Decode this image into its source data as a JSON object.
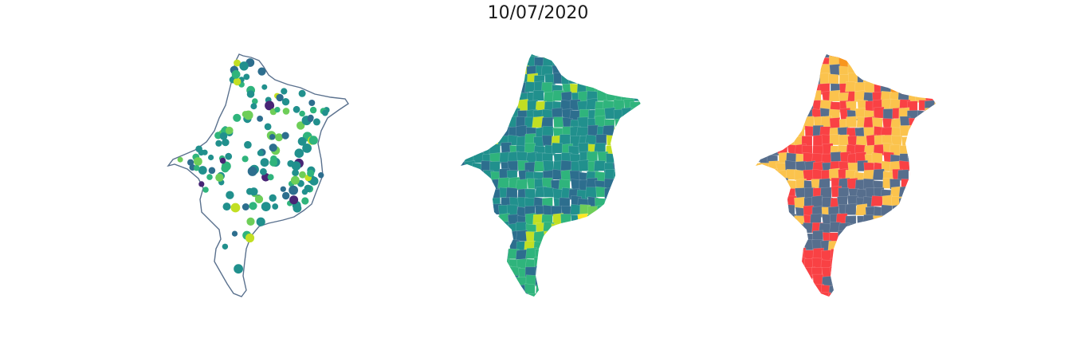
{
  "figure": {
    "title": "10/07/2020"
  },
  "colors": {
    "outline": "#5a718e",
    "viridis": [
      "#482575",
      "#2d6e8e",
      "#21908d",
      "#2fb47c",
      "#6ece58",
      "#c2df23",
      "#fde725"
    ],
    "risk": [
      "#566e8d",
      "#fbc34d",
      "#f94144",
      "#f8961e"
    ]
  },
  "panels": [
    {
      "id": "points-map",
      "style": "outline-with-points",
      "palette": "viridis"
    },
    {
      "id": "continuous-choropleth",
      "style": "filled-regions",
      "palette": "viridis"
    },
    {
      "id": "categorical-choropleth",
      "style": "filled-regions",
      "palette": "risk"
    }
  ]
}
